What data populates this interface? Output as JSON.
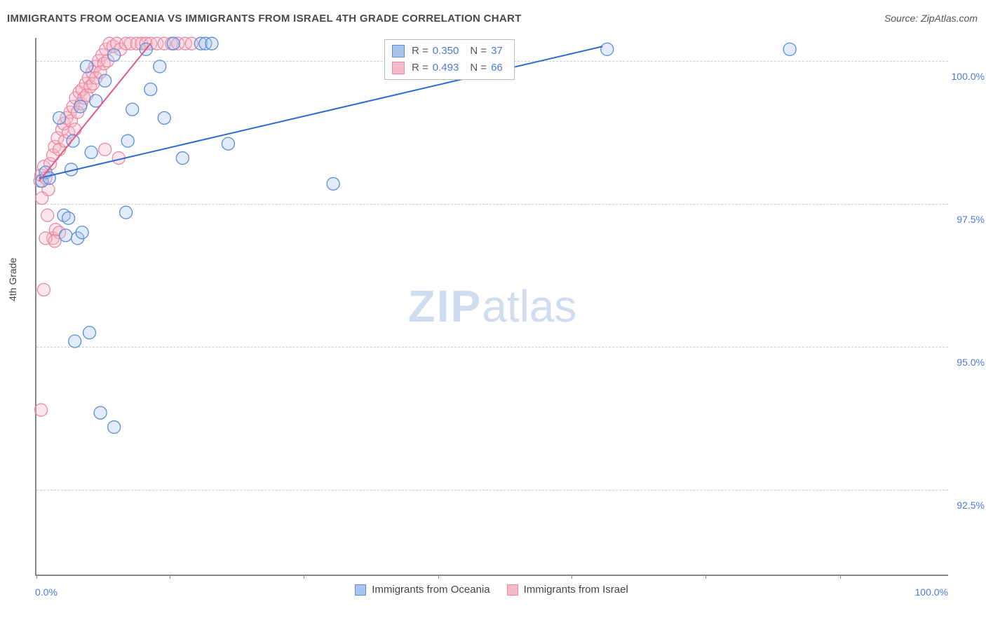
{
  "chart": {
    "type": "scatter",
    "title": "IMMIGRANTS FROM OCEANIA VS IMMIGRANTS FROM ISRAEL 4TH GRADE CORRELATION CHART",
    "source_label": "Source: ZipAtlas.com",
    "watermark_zip": "ZIP",
    "watermark_atlas": "atlas",
    "ylabel": "4th Grade",
    "title_fontsize": 15,
    "label_fontsize": 14,
    "background_color": "#ffffff",
    "grid_color": "#cccccc",
    "axis_color": "#888888",
    "value_text_color": "#4b7bd6",
    "xlim": [
      0,
      100
    ],
    "ylim": [
      91,
      100.4
    ],
    "x_tick_positions_pct": [
      0,
      14.6,
      29.3,
      44.0,
      58.6,
      73.3,
      88.0
    ],
    "y_gridlines": [
      92.5,
      95.0,
      97.5,
      100.0
    ],
    "y_tick_labels": [
      "92.5%",
      "95.0%",
      "97.5%",
      "100.0%"
    ],
    "x_axis_left_label": "0.0%",
    "x_axis_right_label": "100.0%",
    "point_radius": 9,
    "point_fill_opacity": 0.35,
    "line_width": 2,
    "series": [
      {
        "name": "Immigrants from Oceania",
        "color_fill": "#a9c5ef",
        "color_stroke": "#5b8dd6",
        "line_color": "#2e6bd1",
        "R": "0.350",
        "N": "37",
        "trend": {
          "x1": 0.3,
          "y1": 97.95,
          "x2": 62,
          "y2": 100.25
        },
        "points": [
          {
            "x": 0.6,
            "y": 97.9
          },
          {
            "x": 1.0,
            "y": 98.05
          },
          {
            "x": 1.4,
            "y": 97.95
          },
          {
            "x": 3.0,
            "y": 97.3
          },
          {
            "x": 3.5,
            "y": 97.25
          },
          {
            "x": 3.2,
            "y": 96.95
          },
          {
            "x": 4.5,
            "y": 96.9
          },
          {
            "x": 5.0,
            "y": 97.0
          },
          {
            "x": 9.8,
            "y": 97.35
          },
          {
            "x": 5.8,
            "y": 95.25
          },
          {
            "x": 4.2,
            "y": 95.1
          },
          {
            "x": 7.0,
            "y": 93.85
          },
          {
            "x": 8.5,
            "y": 93.6
          },
          {
            "x": 2.5,
            "y": 99.0
          },
          {
            "x": 4.0,
            "y": 98.6
          },
          {
            "x": 6.0,
            "y": 98.4
          },
          {
            "x": 4.8,
            "y": 99.2
          },
          {
            "x": 6.5,
            "y": 99.3
          },
          {
            "x": 3.8,
            "y": 98.1
          },
          {
            "x": 7.5,
            "y": 99.65
          },
          {
            "x": 8.5,
            "y": 100.1
          },
          {
            "x": 10.5,
            "y": 99.15
          },
          {
            "x": 10.0,
            "y": 98.6
          },
          {
            "x": 12.5,
            "y": 99.5
          },
          {
            "x": 12.0,
            "y": 100.2
          },
          {
            "x": 13.5,
            "y": 99.9
          },
          {
            "x": 15.0,
            "y": 100.3
          },
          {
            "x": 16.0,
            "y": 98.3
          },
          {
            "x": 14.0,
            "y": 99.0
          },
          {
            "x": 18.0,
            "y": 100.3
          },
          {
            "x": 18.5,
            "y": 100.3
          },
          {
            "x": 19.2,
            "y": 100.3
          },
          {
            "x": 21.0,
            "y": 98.55
          },
          {
            "x": 32.5,
            "y": 97.85
          },
          {
            "x": 5.5,
            "y": 99.9
          },
          {
            "x": 62.5,
            "y": 100.2
          },
          {
            "x": 82.5,
            "y": 100.2
          }
        ]
      },
      {
        "name": "Immigrants from Israel",
        "color_fill": "#f5b9c8",
        "color_stroke": "#e88aa3",
        "line_color": "#e05a82",
        "R": "0.493",
        "N": "66",
        "trend": {
          "x1": 0.3,
          "y1": 97.9,
          "x2": 12.5,
          "y2": 100.3
        },
        "points": [
          {
            "x": 0.4,
            "y": 97.9
          },
          {
            "x": 0.5,
            "y": 98.0
          },
          {
            "x": 0.8,
            "y": 98.15
          },
          {
            "x": 1.0,
            "y": 97.95
          },
          {
            "x": 1.3,
            "y": 97.75
          },
          {
            "x": 0.6,
            "y": 97.6
          },
          {
            "x": 1.2,
            "y": 97.3
          },
          {
            "x": 1.8,
            "y": 96.9
          },
          {
            "x": 2.1,
            "y": 97.05
          },
          {
            "x": 2.5,
            "y": 97.0
          },
          {
            "x": 1.0,
            "y": 96.9
          },
          {
            "x": 2.0,
            "y": 96.85
          },
          {
            "x": 0.8,
            "y": 96.0
          },
          {
            "x": 0.5,
            "y": 93.9
          },
          {
            "x": 1.5,
            "y": 98.2
          },
          {
            "x": 1.8,
            "y": 98.35
          },
          {
            "x": 2.0,
            "y": 98.5
          },
          {
            "x": 2.3,
            "y": 98.65
          },
          {
            "x": 2.5,
            "y": 98.45
          },
          {
            "x": 2.8,
            "y": 98.8
          },
          {
            "x": 3.0,
            "y": 98.9
          },
          {
            "x": 3.1,
            "y": 98.6
          },
          {
            "x": 3.3,
            "y": 99.0
          },
          {
            "x": 3.5,
            "y": 98.75
          },
          {
            "x": 3.7,
            "y": 99.1
          },
          {
            "x": 3.8,
            "y": 98.95
          },
          {
            "x": 4.0,
            "y": 99.2
          },
          {
            "x": 4.2,
            "y": 98.8
          },
          {
            "x": 4.3,
            "y": 99.35
          },
          {
            "x": 4.5,
            "y": 99.1
          },
          {
            "x": 4.7,
            "y": 99.45
          },
          {
            "x": 4.9,
            "y": 99.25
          },
          {
            "x": 5.0,
            "y": 99.5
          },
          {
            "x": 5.2,
            "y": 99.35
          },
          {
            "x": 5.4,
            "y": 99.6
          },
          {
            "x": 5.5,
            "y": 99.4
          },
          {
            "x": 5.7,
            "y": 99.7
          },
          {
            "x": 5.9,
            "y": 99.55
          },
          {
            "x": 6.1,
            "y": 99.8
          },
          {
            "x": 6.2,
            "y": 99.6
          },
          {
            "x": 6.4,
            "y": 99.9
          },
          {
            "x": 6.5,
            "y": 99.7
          },
          {
            "x": 6.8,
            "y": 100.0
          },
          {
            "x": 7.0,
            "y": 99.8
          },
          {
            "x": 7.2,
            "y": 100.1
          },
          {
            "x": 7.4,
            "y": 99.95
          },
          {
            "x": 7.6,
            "y": 100.2
          },
          {
            "x": 7.8,
            "y": 100.0
          },
          {
            "x": 8.0,
            "y": 100.3
          },
          {
            "x": 8.4,
            "y": 100.25
          },
          {
            "x": 8.8,
            "y": 100.3
          },
          {
            "x": 9.2,
            "y": 100.2
          },
          {
            "x": 9.8,
            "y": 100.3
          },
          {
            "x": 10.3,
            "y": 100.3
          },
          {
            "x": 11.0,
            "y": 100.3
          },
          {
            "x": 11.5,
            "y": 100.3
          },
          {
            "x": 12.0,
            "y": 100.3
          },
          {
            "x": 12.5,
            "y": 100.3
          },
          {
            "x": 13.2,
            "y": 100.3
          },
          {
            "x": 14.0,
            "y": 100.3
          },
          {
            "x": 14.8,
            "y": 100.3
          },
          {
            "x": 15.5,
            "y": 100.3
          },
          {
            "x": 16.3,
            "y": 100.3
          },
          {
            "x": 17.0,
            "y": 100.3
          },
          {
            "x": 9.0,
            "y": 98.3
          },
          {
            "x": 7.5,
            "y": 98.45
          }
        ]
      }
    ],
    "bottom_legend": [
      {
        "label": "Immigrants from Oceania",
        "fill": "#a9c5ef",
        "stroke": "#5b8dd6"
      },
      {
        "label": "Immigrants from Israel",
        "fill": "#f5b9c8",
        "stroke": "#e88aa3"
      }
    ]
  }
}
